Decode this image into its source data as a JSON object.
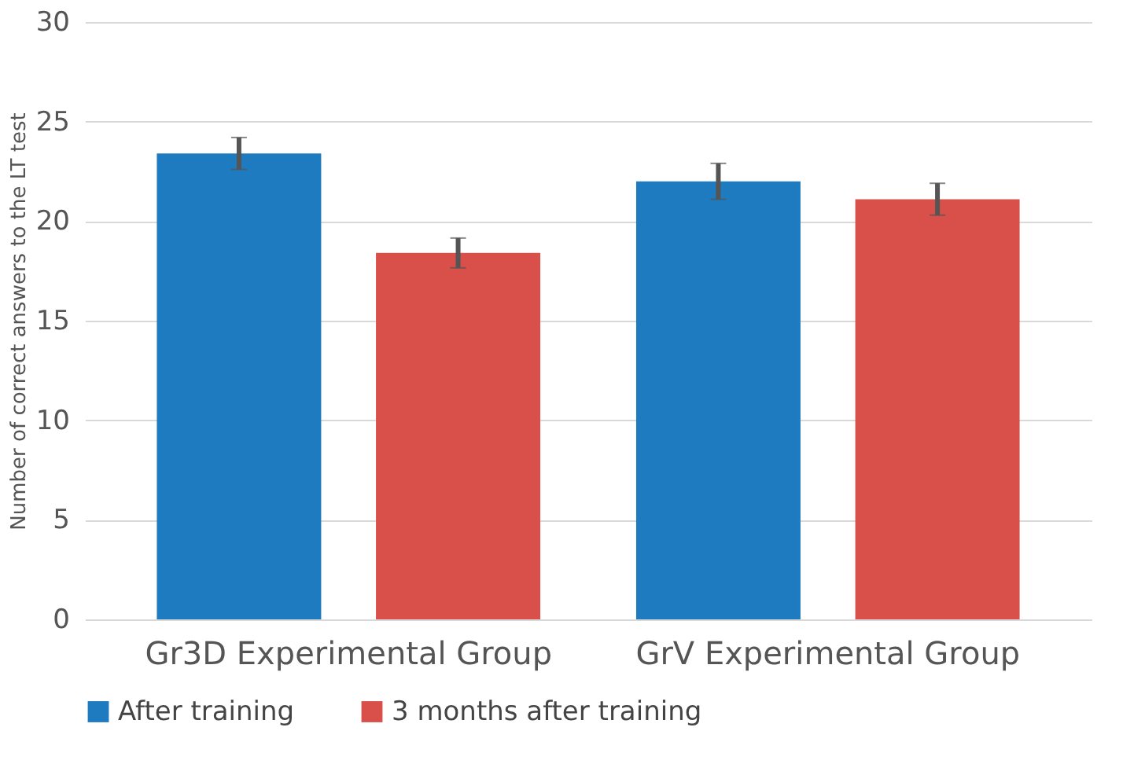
{
  "chart_data": {
    "type": "bar",
    "categories": [
      "Gr3D Experimental Group",
      "GrV Experimental Group"
    ],
    "ylabel": "Number of correct answers to the LT test",
    "series": [
      {
        "name": "After training",
        "color": "#1f7bbf",
        "values": [
          23.4,
          22.0
        ],
        "errors": [
          0.8,
          0.9
        ]
      },
      {
        "name": "3 months after training",
        "color": "#d94f4a",
        "values": [
          18.4,
          21.1
        ],
        "errors": [
          0.75,
          0.8
        ]
      }
    ],
    "ylim": [
      0,
      30
    ],
    "yticks": [
      0,
      5,
      10,
      15,
      20,
      25,
      30
    ],
    "grid": "y",
    "legend": "bottom"
  }
}
